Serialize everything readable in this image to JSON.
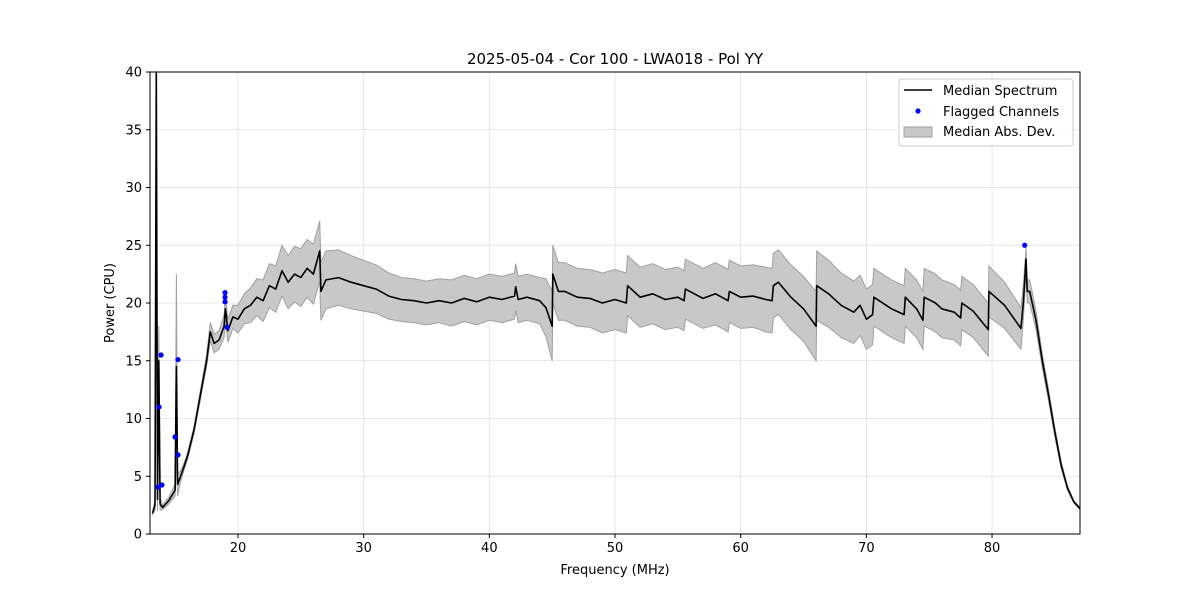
{
  "chart_data": {
    "type": "line",
    "title": "2025-05-04 - Cor 100 - LWA018 - Pol YY",
    "xlabel": "Frequency (MHz)",
    "ylabel": "Power (CPU)",
    "xlim": [
      13,
      87
    ],
    "ylim": [
      0,
      40
    ],
    "xticks": [
      20,
      30,
      40,
      50,
      60,
      70,
      80
    ],
    "yticks": [
      0,
      5,
      10,
      15,
      20,
      25,
      30,
      35,
      40
    ],
    "grid": true,
    "legend_position": "top-right",
    "legend": [
      "Median Spectrum",
      "Flagged Channels",
      "Median Abs. Dev."
    ],
    "colors": {
      "median": "#000000",
      "flagged": "#0000ff",
      "mad_fill": "#c8c8c8",
      "mad_edge": "#a0a0a0"
    },
    "series_columns": [
      "frequency",
      "median",
      "mad"
    ],
    "median_spectrum": [
      [
        13.2,
        1.8,
        0.1
      ],
      [
        13.4,
        2.5,
        0.5
      ],
      [
        13.5,
        40,
        0
      ],
      [
        13.6,
        3,
        1
      ],
      [
        13.7,
        15,
        3
      ],
      [
        13.8,
        2.6,
        0.5
      ],
      [
        14.0,
        2.3,
        0.2
      ],
      [
        14.5,
        2.9,
        0.3
      ],
      [
        15.0,
        3.8,
        0.5
      ],
      [
        15.1,
        14.5,
        8
      ],
      [
        15.2,
        4.3,
        1
      ],
      [
        15.4,
        4.9,
        0.5
      ],
      [
        15.7,
        5.8,
        0.3
      ],
      [
        16,
        6.8,
        0.3
      ],
      [
        16.5,
        9,
        0.3
      ],
      [
        17,
        12,
        0.4
      ],
      [
        17.5,
        15,
        0.5
      ],
      [
        17.8,
        17.5,
        0.8
      ],
      [
        18.1,
        16.5,
        0.8
      ],
      [
        18.5,
        16.8,
        0.8
      ],
      [
        18.9,
        18,
        1
      ],
      [
        19.0,
        19.5,
        1
      ],
      [
        19.2,
        17.6,
        1
      ],
      [
        19.6,
        18.8,
        1
      ],
      [
        20,
        18.6,
        1.2
      ],
      [
        20.5,
        19.5,
        1.3
      ],
      [
        21,
        19.8,
        1.5
      ],
      [
        21.5,
        20.5,
        1.6
      ],
      [
        22,
        20.2,
        1.8
      ],
      [
        22.5,
        21.5,
        1.9
      ],
      [
        23,
        21.2,
        2
      ],
      [
        23.5,
        22.8,
        2.2
      ],
      [
        24,
        21.8,
        2.3
      ],
      [
        24.5,
        22.5,
        2.4
      ],
      [
        25,
        22.2,
        2.5
      ],
      [
        25.5,
        23,
        2.5
      ],
      [
        26,
        22.5,
        2.6
      ],
      [
        26.5,
        24.5,
        2.6
      ],
      [
        26.6,
        21,
        2.5
      ],
      [
        27,
        22,
        2.5
      ],
      [
        28,
        22.2,
        2.4
      ],
      [
        29,
        21.8,
        2.3
      ],
      [
        30,
        21.5,
        2.2
      ],
      [
        31,
        21.2,
        2.1
      ],
      [
        32,
        20.6,
        2
      ],
      [
        33,
        20.3,
        1.9
      ],
      [
        34,
        20.2,
        1.9
      ],
      [
        35,
        20,
        1.9
      ],
      [
        36,
        20.2,
        1.9
      ],
      [
        37,
        20,
        2
      ],
      [
        38,
        20.4,
        2
      ],
      [
        39,
        20.1,
        2
      ],
      [
        40,
        20.5,
        2
      ],
      [
        41,
        20.3,
        2
      ],
      [
        42,
        20.6,
        2
      ],
      [
        42.1,
        21.4,
        2
      ],
      [
        42.3,
        20.3,
        2
      ],
      [
        43,
        20.5,
        2
      ],
      [
        44,
        20.2,
        2
      ],
      [
        44.5,
        19.6,
        2.5
      ],
      [
        45,
        18,
        3
      ],
      [
        45.05,
        22.5,
        2.5
      ],
      [
        45.5,
        21,
        2.5
      ],
      [
        46,
        21,
        2.5
      ],
      [
        47,
        20.5,
        2.5
      ],
      [
        48,
        20.4,
        2.5
      ],
      [
        49,
        20,
        2.6
      ],
      [
        50,
        20.3,
        2.6
      ],
      [
        50.9,
        20,
        2.6
      ],
      [
        51,
        21.5,
        2.6
      ],
      [
        52,
        20.5,
        2.6
      ],
      [
        53,
        20.8,
        2.6
      ],
      [
        54,
        20.3,
        2.6
      ],
      [
        55,
        20.5,
        2.6
      ],
      [
        55.5,
        20.2,
        2.6
      ],
      [
        55.6,
        21.2,
        2.6
      ],
      [
        57,
        20.4,
        2.6
      ],
      [
        58,
        20.8,
        2.7
      ],
      [
        59,
        20.2,
        2.7
      ],
      [
        59.1,
        21,
        2.7
      ],
      [
        60,
        20.5,
        2.7
      ],
      [
        61,
        20.6,
        2.7
      ],
      [
        62,
        20.3,
        2.8
      ],
      [
        62.5,
        20.2,
        2.8
      ],
      [
        62.6,
        21.5,
        2.8
      ],
      [
        63,
        21.8,
        2.8
      ],
      [
        64,
        20.5,
        2.8
      ],
      [
        65,
        19.5,
        2.8
      ],
      [
        66,
        18,
        3
      ],
      [
        66.05,
        21.5,
        3
      ],
      [
        67,
        20.8,
        2.9
      ],
      [
        68,
        19.8,
        2.8
      ],
      [
        69,
        19.2,
        2.7
      ],
      [
        69.5,
        19.8,
        2.6
      ],
      [
        70,
        18.6,
        2.6
      ],
      [
        70.5,
        19,
        2.6
      ],
      [
        70.6,
        20.5,
        2.5
      ],
      [
        72,
        19.5,
        2.5
      ],
      [
        73,
        19,
        2.5
      ],
      [
        73.1,
        20.5,
        2.5
      ],
      [
        74,
        19.5,
        2.5
      ],
      [
        74.5,
        18.5,
        2.5
      ],
      [
        74.6,
        20.5,
        2.5
      ],
      [
        75.5,
        20,
        2.5
      ],
      [
        76,
        19.5,
        2.5
      ],
      [
        77,
        19.2,
        2.4
      ],
      [
        77.5,
        18.7,
        2.4
      ],
      [
        77.6,
        20,
        2.3
      ],
      [
        78.5,
        19.3,
        2.3
      ],
      [
        79.7,
        17.7,
        2.3
      ],
      [
        79.75,
        21,
        2.2
      ],
      [
        81,
        19.8,
        2
      ],
      [
        82.3,
        17.8,
        1.8
      ],
      [
        82.5,
        20.1,
        1.5
      ],
      [
        82.7,
        23.8,
        1
      ],
      [
        82.8,
        21,
        1
      ],
      [
        83,
        21,
        1
      ],
      [
        83.5,
        18.5,
        0.8
      ],
      [
        84,
        15,
        0.6
      ],
      [
        84.5,
        12,
        0.5
      ],
      [
        85,
        8.8,
        0.4
      ],
      [
        85.5,
        6,
        0.3
      ],
      [
        86,
        4,
        0.2
      ],
      [
        86.5,
        2.8,
        0.1
      ],
      [
        87,
        2.2,
        0.1
      ]
    ],
    "flagged_channels": [
      [
        13.64,
        4.07
      ],
      [
        13.95,
        4.24
      ],
      [
        13.72,
        11.0
      ],
      [
        13.88,
        15.5
      ],
      [
        14.99,
        8.4
      ],
      [
        15.23,
        15.1
      ],
      [
        15.23,
        6.85
      ],
      [
        18.97,
        20.9
      ],
      [
        18.97,
        20.5
      ],
      [
        18.97,
        20.1
      ],
      [
        19.13,
        17.9
      ],
      [
        82.6,
        25.0
      ]
    ]
  }
}
